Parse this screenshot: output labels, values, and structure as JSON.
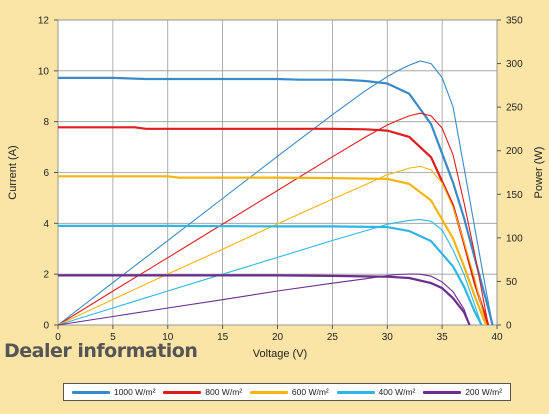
{
  "overlay_text": "Dealer information",
  "chart_data": {
    "type": "line",
    "title": "",
    "xlabel": "Voltage (V)",
    "ylabel": "Current (A)",
    "y2label": "Power (W)",
    "xlim": [
      0,
      40
    ],
    "ylim": [
      0,
      12
    ],
    "y2lim": [
      0,
      350
    ],
    "xticks": [
      0,
      5,
      10,
      15,
      20,
      25,
      30,
      35,
      40
    ],
    "yticks": [
      0,
      2,
      4,
      6,
      8,
      10,
      12
    ],
    "y2ticks": [
      0,
      50,
      100,
      150,
      200,
      250,
      300,
      350
    ],
    "grid": true,
    "legend_position": "bottom",
    "series": [
      {
        "name": "1000 W/m²",
        "color": "#3b8ac8",
        "current": [
          [
            0,
            9.72
          ],
          [
            5,
            9.72
          ],
          [
            8,
            9.68
          ],
          [
            15,
            9.68
          ],
          [
            20,
            9.68
          ],
          [
            22,
            9.65
          ],
          [
            26,
            9.65
          ],
          [
            28,
            9.6
          ],
          [
            30,
            9.5
          ],
          [
            32,
            9.1
          ],
          [
            34,
            7.9
          ],
          [
            36,
            5.6
          ],
          [
            37,
            4.2
          ],
          [
            38,
            2.6
          ],
          [
            39,
            1.0
          ],
          [
            39.6,
            0
          ]
        ],
        "power": [
          [
            0,
            0
          ],
          [
            5,
            48.6
          ],
          [
            10,
            96.8
          ],
          [
            15,
            145.2
          ],
          [
            20,
            193.6
          ],
          [
            25,
            241.3
          ],
          [
            28,
            268.8
          ],
          [
            30,
            285
          ],
          [
            31,
            292
          ],
          [
            32,
            298
          ],
          [
            33,
            303
          ],
          [
            34,
            300
          ],
          [
            35,
            284
          ],
          [
            36,
            250
          ],
          [
            37,
            180
          ],
          [
            38,
            110
          ],
          [
            39,
            40
          ],
          [
            39.6,
            0
          ]
        ]
      },
      {
        "name": "800 W/m²",
        "color": "#e01d1d",
        "current": [
          [
            0,
            7.78
          ],
          [
            7,
            7.78
          ],
          [
            8,
            7.72
          ],
          [
            20,
            7.72
          ],
          [
            25,
            7.72
          ],
          [
            28,
            7.7
          ],
          [
            30,
            7.65
          ],
          [
            32,
            7.4
          ],
          [
            34,
            6.6
          ],
          [
            36,
            4.7
          ],
          [
            37,
            3.2
          ],
          [
            38,
            1.6
          ],
          [
            39.2,
            0
          ]
        ],
        "power": [
          [
            0,
            0
          ],
          [
            5,
            38.9
          ],
          [
            10,
            77.2
          ],
          [
            15,
            115.8
          ],
          [
            20,
            154.4
          ],
          [
            25,
            193
          ],
          [
            28,
            215.6
          ],
          [
            30,
            229.5
          ],
          [
            31,
            235
          ],
          [
            32,
            240
          ],
          [
            33,
            243
          ],
          [
            34,
            240
          ],
          [
            35,
            226
          ],
          [
            36,
            195
          ],
          [
            37,
            140
          ],
          [
            38,
            80
          ],
          [
            39.2,
            0
          ]
        ]
      },
      {
        "name": "600 W/m²",
        "color": "#f5b510",
        "current": [
          [
            0,
            5.85
          ],
          [
            10,
            5.85
          ],
          [
            11,
            5.8
          ],
          [
            20,
            5.8
          ],
          [
            25,
            5.78
          ],
          [
            30,
            5.75
          ],
          [
            32,
            5.55
          ],
          [
            34,
            4.9
          ],
          [
            36,
            3.4
          ],
          [
            37,
            2.3
          ],
          [
            38,
            1.1
          ],
          [
            39,
            0
          ]
        ],
        "power": [
          [
            0,
            0
          ],
          [
            5,
            29.3
          ],
          [
            10,
            58.5
          ],
          [
            15,
            87
          ],
          [
            20,
            116
          ],
          [
            25,
            144.5
          ],
          [
            28,
            161
          ],
          [
            30,
            172.5
          ],
          [
            31,
            176
          ],
          [
            32,
            180
          ],
          [
            33,
            182
          ],
          [
            34,
            178
          ],
          [
            35,
            163
          ],
          [
            36,
            135
          ],
          [
            37,
            95
          ],
          [
            38,
            52
          ],
          [
            39,
            0
          ]
        ]
      },
      {
        "name": "400 W/m²",
        "color": "#2fb6e6",
        "current": [
          [
            0,
            3.9
          ],
          [
            10,
            3.9
          ],
          [
            20,
            3.88
          ],
          [
            25,
            3.88
          ],
          [
            30,
            3.85
          ],
          [
            32,
            3.7
          ],
          [
            34,
            3.3
          ],
          [
            36,
            2.3
          ],
          [
            37,
            1.5
          ],
          [
            38,
            0.5
          ],
          [
            38.6,
            0
          ]
        ],
        "power": [
          [
            0,
            0
          ],
          [
            5,
            19.5
          ],
          [
            10,
            39
          ],
          [
            15,
            58.3
          ],
          [
            20,
            77.6
          ],
          [
            25,
            97
          ],
          [
            28,
            108
          ],
          [
            30,
            115.5
          ],
          [
            31,
            118
          ],
          [
            32,
            120
          ],
          [
            33,
            121
          ],
          [
            34,
            119
          ],
          [
            35,
            109
          ],
          [
            36,
            86
          ],
          [
            37,
            58
          ],
          [
            38,
            22
          ],
          [
            38.6,
            0
          ]
        ]
      },
      {
        "name": "200 W/m²",
        "color": "#6b2d8e",
        "current": [
          [
            0,
            1.95
          ],
          [
            10,
            1.95
          ],
          [
            20,
            1.95
          ],
          [
            25,
            1.93
          ],
          [
            30,
            1.9
          ],
          [
            32,
            1.85
          ],
          [
            34,
            1.65
          ],
          [
            35,
            1.45
          ],
          [
            36,
            1.05
          ],
          [
            37,
            0.5
          ],
          [
            37.5,
            0
          ]
        ],
        "power": [
          [
            0,
            0
          ],
          [
            5,
            9.75
          ],
          [
            10,
            19.5
          ],
          [
            15,
            29
          ],
          [
            20,
            39
          ],
          [
            25,
            48
          ],
          [
            28,
            53
          ],
          [
            30,
            56.8
          ],
          [
            31,
            58
          ],
          [
            32,
            58.5
          ],
          [
            33,
            58.3
          ],
          [
            34,
            56
          ],
          [
            35,
            49.5
          ],
          [
            36,
            38
          ],
          [
            37,
            18
          ],
          [
            37.5,
            0
          ]
        ]
      }
    ]
  }
}
